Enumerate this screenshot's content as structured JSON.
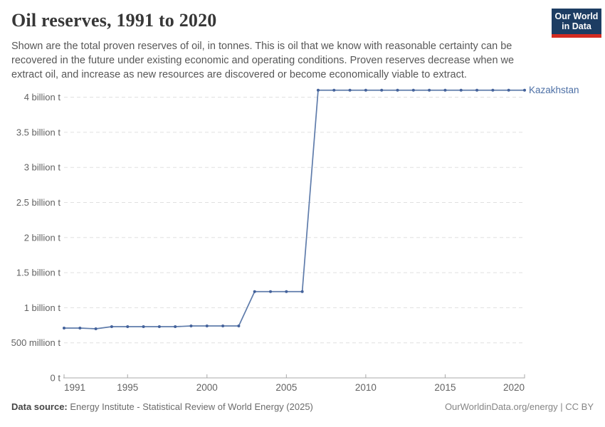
{
  "header": {
    "title": "Oil reserves, 1991 to 2020",
    "subtitle": "Shown are the total proven reserves of oil, in tonnes. This is oil that we know with reasonable certainty can be recovered in the future under existing economic and operating conditions. Proven reserves decrease when we extract oil, and increase as new resources are discovered or become economically viable to extract."
  },
  "logo": {
    "line1": "Our World",
    "line2": "in Data",
    "bg_color": "#1d3d63",
    "accent_color": "#d42b21"
  },
  "chart_data": {
    "type": "line",
    "title": "Oil reserves, 1991 to 2020",
    "xlabel": "",
    "ylabel": "",
    "unit": "billion tonnes",
    "x": [
      1991,
      1992,
      1993,
      1994,
      1995,
      1996,
      1997,
      1998,
      1999,
      2000,
      2001,
      2002,
      2003,
      2004,
      2005,
      2006,
      2007,
      2008,
      2009,
      2010,
      2011,
      2012,
      2013,
      2014,
      2015,
      2016,
      2017,
      2018,
      2019,
      2020
    ],
    "series": [
      {
        "name": "Kazakhstan",
        "color": "#4c6fa5",
        "values": [
          0.71,
          0.71,
          0.7,
          0.73,
          0.73,
          0.73,
          0.73,
          0.73,
          0.74,
          0.74,
          0.74,
          0.74,
          1.23,
          1.23,
          1.23,
          1.23,
          4.1,
          4.1,
          4.1,
          4.1,
          4.1,
          4.1,
          4.1,
          4.1,
          4.1,
          4.1,
          4.1,
          4.1,
          4.1,
          4.1
        ]
      }
    ],
    "xlim": [
      1991,
      2020
    ],
    "ylim": [
      0,
      4.35
    ],
    "x_ticks": [
      1991,
      1995,
      2000,
      2005,
      2010,
      2015,
      2020
    ],
    "y_ticks": [
      {
        "value": 0,
        "label": "0 t"
      },
      {
        "value": 0.5,
        "label": "500 million t"
      },
      {
        "value": 1,
        "label": "1 billion t"
      },
      {
        "value": 1.5,
        "label": "1.5 billion t"
      },
      {
        "value": 2,
        "label": "2 billion t"
      },
      {
        "value": 2.5,
        "label": "2.5 billion t"
      },
      {
        "value": 3,
        "label": "3 billion t"
      },
      {
        "value": 3.5,
        "label": "3.5 billion t"
      },
      {
        "value": 4,
        "label": "4 billion t"
      }
    ],
    "grid": "horizontal-dashed",
    "legend_position": "end-of-line-label",
    "colors": {
      "line": "#5f7cab",
      "marker": "#44629b",
      "gridline": "#e0e0e0",
      "axis": "#a8a8a8",
      "tick_label": "#636363"
    }
  },
  "footer": {
    "source_label": "Data source:",
    "source_value": " Energy Institute - Statistical Review of World Energy (2025)",
    "right_text": "OurWorldinData.org/energy | CC BY"
  }
}
